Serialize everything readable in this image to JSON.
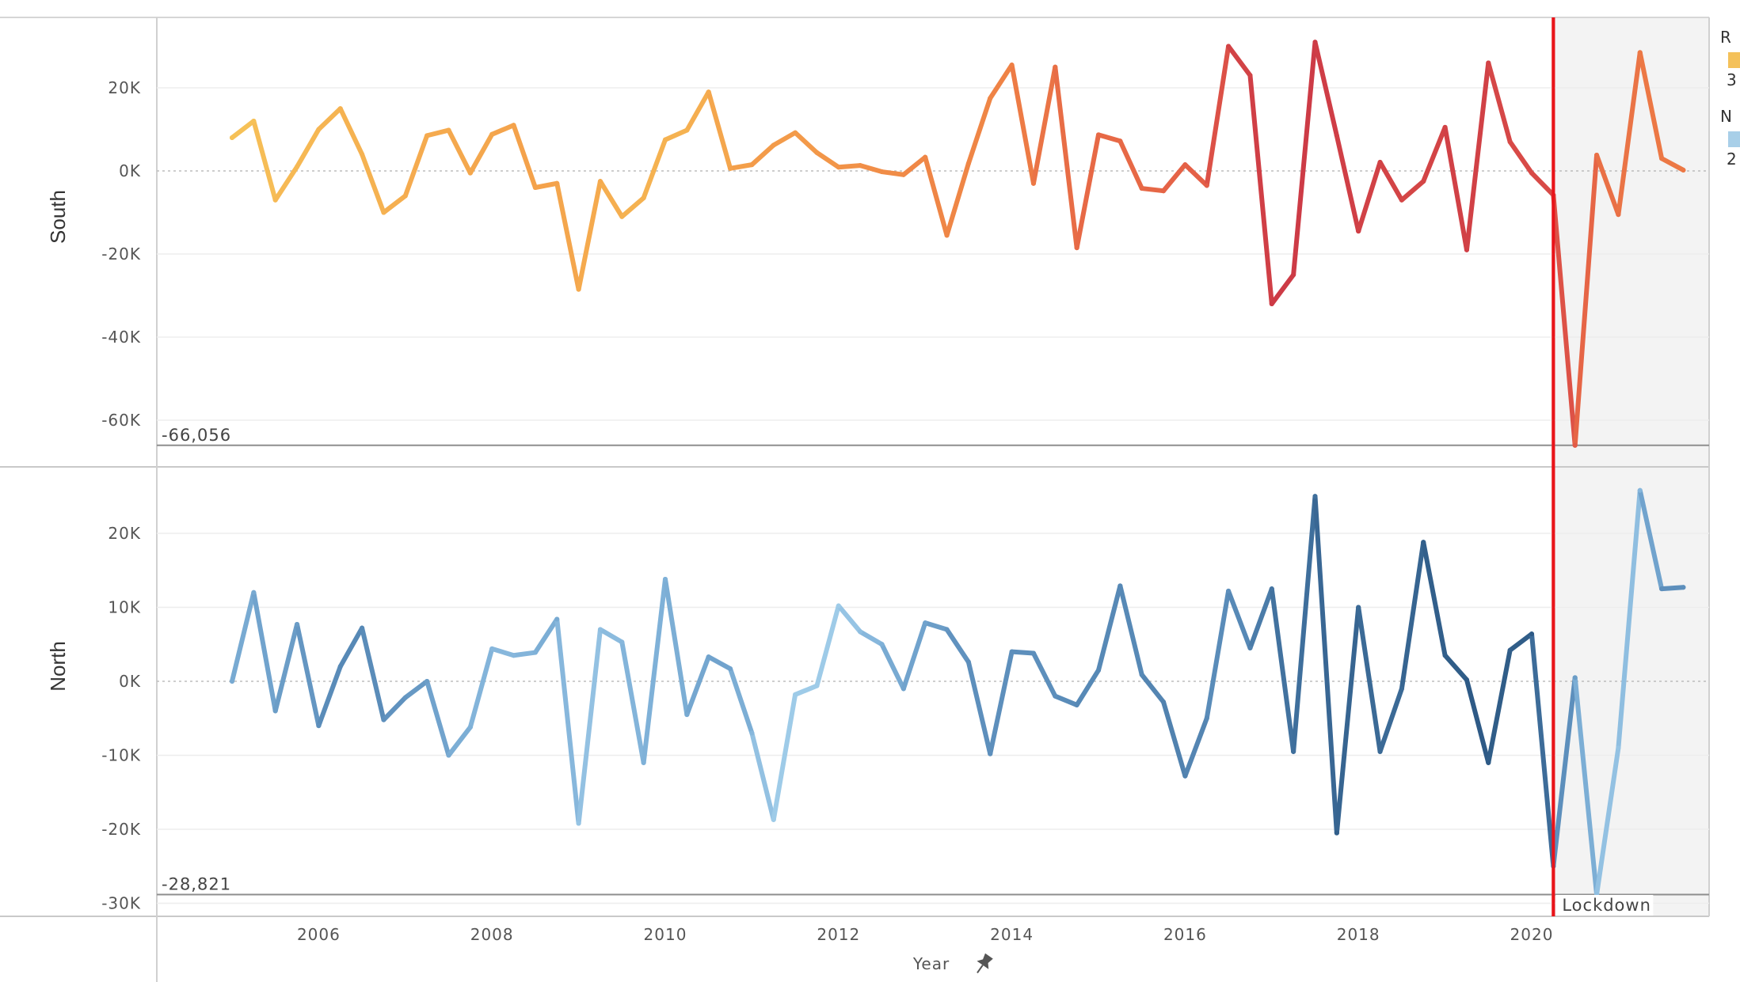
{
  "chart_data": {
    "type": "line",
    "xlabel": "Year",
    "x_ticks": [
      "2006",
      "2008",
      "2010",
      "2012",
      "2014",
      "2016",
      "2018",
      "2020"
    ],
    "x_start": 2005,
    "x_step": 0.25,
    "reference_line": {
      "x": 2020.25,
      "color": "#e8141a"
    },
    "shaded_region": {
      "from": 2020.25,
      "label": "Lockdown"
    },
    "legend": [
      {
        "title_fragment": "R",
        "swatch": "#f4c15a",
        "value_fragment": "3"
      },
      {
        "title_fragment": "N",
        "swatch": "#a8cfe8",
        "value_fragment": "2"
      }
    ],
    "panels": [
      {
        "id": "south",
        "row_label": "South",
        "ylim": [
          -66056,
          33000
        ],
        "y_ticks": [
          {
            "v": 20000,
            "label": "20K"
          },
          {
            "v": 0,
            "label": "0K"
          },
          {
            "v": -20000,
            "label": "-20K"
          },
          {
            "v": -40000,
            "label": "-40K"
          },
          {
            "v": -60000,
            "label": "-60K"
          }
        ],
        "min_label": "-66,056",
        "palette": [
          "#f7c95a",
          "#f4a24b",
          "#ee7f45",
          "#e25a47",
          "#c83346"
        ],
        "values": [
          8000,
          12000,
          -7000,
          1000,
          10000,
          15000,
          4000,
          -10000,
          -6000,
          8500,
          9800,
          -500,
          8800,
          11000,
          -4000,
          -3000,
          -28500,
          -2500,
          -11000,
          -6500,
          7500,
          9800,
          19000,
          600,
          1500,
          6200,
          9200,
          4400,
          900,
          1300,
          -200,
          -900,
          3300,
          -15500,
          1800,
          17500,
          25500,
          -3000,
          25000,
          -18500,
          8700,
          7200,
          -4200,
          -4800,
          1500,
          -3500,
          30000,
          23000,
          -32000,
          -25000,
          31000,
          8500,
          -14500,
          2100,
          -7000,
          -2500,
          10500,
          -19000,
          26000,
          7000,
          -500,
          -5800,
          -66056,
          3800,
          -10500,
          28500,
          3000,
          200
        ],
        "intensity": [
          0.05,
          0.05,
          0.1,
          0.1,
          0.12,
          0.15,
          0.15,
          0.15,
          0.18,
          0.2,
          0.2,
          0.22,
          0.22,
          0.25,
          0.25,
          0.25,
          0.2,
          0.2,
          0.15,
          0.15,
          0.15,
          0.15,
          0.2,
          0.25,
          0.3,
          0.3,
          0.3,
          0.32,
          0.35,
          0.38,
          0.4,
          0.42,
          0.45,
          0.45,
          0.45,
          0.45,
          0.5,
          0.55,
          0.6,
          0.65,
          0.65,
          0.65,
          0.65,
          0.68,
          0.7,
          0.72,
          0.9,
          0.9,
          0.95,
          0.95,
          0.95,
          0.92,
          0.92,
          0.9,
          0.88,
          0.88,
          0.9,
          0.92,
          0.9,
          0.85,
          0.85,
          0.85,
          0.75,
          0.6,
          0.6,
          0.55,
          0.55,
          0.55
        ]
      },
      {
        "id": "north",
        "row_label": "North",
        "ylim": [
          -28821,
          28000
        ],
        "y_ticks": [
          {
            "v": 20000,
            "label": "20K"
          },
          {
            "v": 10000,
            "label": "10K"
          },
          {
            "v": 0,
            "label": "0K"
          },
          {
            "v": -10000,
            "label": "-10K"
          },
          {
            "v": -20000,
            "label": "-20K"
          },
          {
            "v": -30000,
            "label": "-30K"
          }
        ],
        "min_label": "-28,821",
        "palette": [
          "#a6d1ec",
          "#7fb1d8",
          "#5d8fbc",
          "#3f6f9c",
          "#2a5580"
        ],
        "values": [
          0,
          12000,
          -4000,
          7700,
          -6000,
          2000,
          7200,
          -5200,
          -2200,
          0,
          -10000,
          -6200,
          4400,
          3500,
          3900,
          8400,
          -19200,
          7000,
          5300,
          -11000,
          13800,
          -4500,
          3300,
          1700,
          -7000,
          -18700,
          -1800,
          -600,
          10200,
          6700,
          5000,
          -1000,
          7900,
          7000,
          2600,
          -9800,
          4000,
          3800,
          -2000,
          -3200,
          1500,
          12900,
          900,
          -2800,
          -12800,
          -5000,
          12200,
          4500,
          12500,
          -9500,
          25000,
          -20500,
          10000,
          -9500,
          -1000,
          18800,
          3500,
          200,
          -11000,
          4200,
          6400,
          -25000,
          500,
          -28821,
          -9000,
          25800,
          12500,
          12700
        ],
        "intensity": [
          0.3,
          0.3,
          0.4,
          0.4,
          0.5,
          0.55,
          0.55,
          0.5,
          0.45,
          0.4,
          0.3,
          0.25,
          0.2,
          0.2,
          0.25,
          0.3,
          0.1,
          0.15,
          0.2,
          0.25,
          0.25,
          0.3,
          0.35,
          0.35,
          0.2,
          0.05,
          0.05,
          0.05,
          0.05,
          0.15,
          0.25,
          0.35,
          0.35,
          0.45,
          0.5,
          0.5,
          0.5,
          0.5,
          0.5,
          0.55,
          0.55,
          0.55,
          0.55,
          0.6,
          0.6,
          0.55,
          0.5,
          0.6,
          0.7,
          0.75,
          0.75,
          0.9,
          0.8,
          0.8,
          0.8,
          0.9,
          0.9,
          0.95,
          0.95,
          0.9,
          0.95,
          0.6,
          0.4,
          0.15,
          0.1,
          0.2,
          0.5,
          0.5
        ]
      }
    ]
  }
}
